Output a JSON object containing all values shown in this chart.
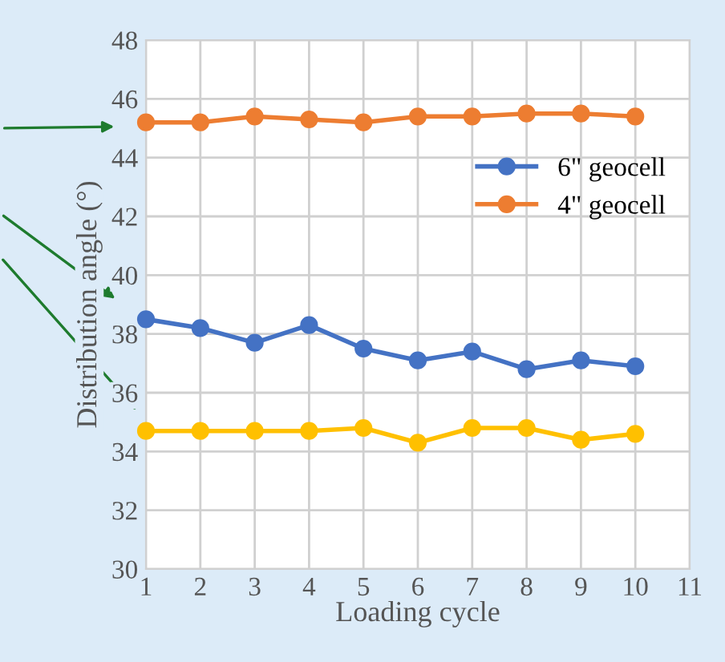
{
  "chart_data": {
    "type": "line",
    "xlabel": "Loading cycle",
    "ylabel": "Distribution angle (°)",
    "x": [
      1,
      2,
      3,
      4,
      5,
      6,
      7,
      8,
      9,
      10
    ],
    "series": [
      {
        "color": "#ffc000",
        "values": [
          34.7,
          34.7,
          34.7,
          34.7,
          34.8,
          34.3,
          34.8,
          34.8,
          34.4,
          34.6
        ]
      },
      {
        "name": "6\" geocell",
        "color": "#4472c4",
        "values": [
          38.5,
          38.2,
          37.7,
          38.3,
          37.5,
          37.1,
          37.4,
          36.8,
          37.1,
          36.9
        ]
      },
      {
        "name": "4\" geocell",
        "color": "#ed7d31",
        "values": [
          45.2,
          45.2,
          45.4,
          45.3,
          45.2,
          45.4,
          45.4,
          45.5,
          45.5,
          45.4
        ]
      }
    ],
    "xlim": [
      1,
      11
    ],
    "xticks": [
      1,
      2,
      3,
      4,
      5,
      6,
      7,
      8,
      9,
      10,
      11
    ],
    "ylim": [
      30,
      48
    ],
    "yticks": [
      30,
      32,
      34,
      36,
      38,
      40,
      42,
      44,
      46,
      48
    ],
    "grid": true,
    "legend": "right",
    "marker": "circle",
    "line_style": "solid"
  }
}
